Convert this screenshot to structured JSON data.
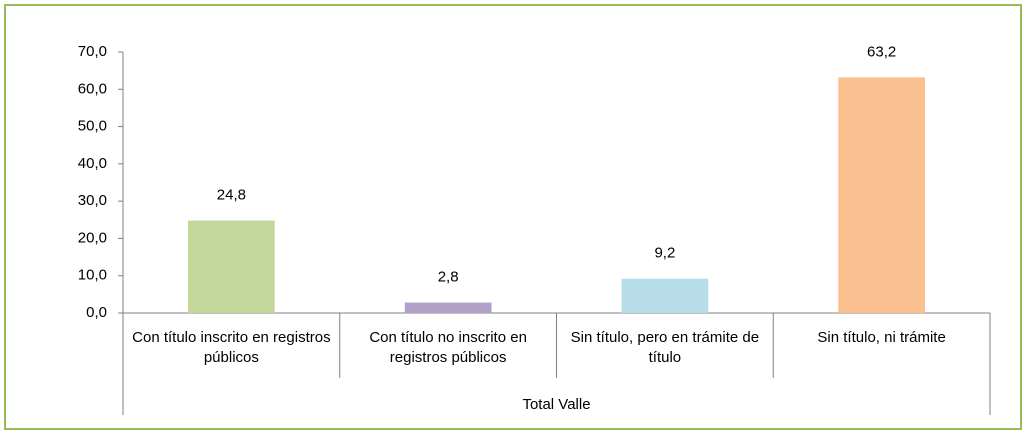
{
  "chart_data": {
    "type": "bar",
    "categories": [
      "Con título inscrito en registros públicos",
      "Con título no inscrito en registros públicos",
      "Sin título, pero en trámite de título",
      "Sin título, ni trámite"
    ],
    "values": [
      24.8,
      2.8,
      9.2,
      63.2
    ],
    "value_labels": [
      "24,8",
      "2,8",
      "9,2",
      "63,2"
    ],
    "colors": [
      "#c4d79b",
      "#b1a0c7",
      "#b7dee8",
      "#fac090"
    ],
    "xlabel": "Total Valle",
    "ylim": [
      0,
      70
    ],
    "yticks": [
      {
        "value": 0,
        "label": "0,0"
      },
      {
        "value": 10,
        "label": "10,0"
      },
      {
        "value": 20,
        "label": "20,0"
      },
      {
        "value": 30,
        "label": "30,0"
      },
      {
        "value": 40,
        "label": "40,0"
      },
      {
        "value": 50,
        "label": "50,0"
      },
      {
        "value": 60,
        "label": "60,0"
      },
      {
        "value": 70,
        "label": "70,0"
      }
    ],
    "grid": false
  }
}
